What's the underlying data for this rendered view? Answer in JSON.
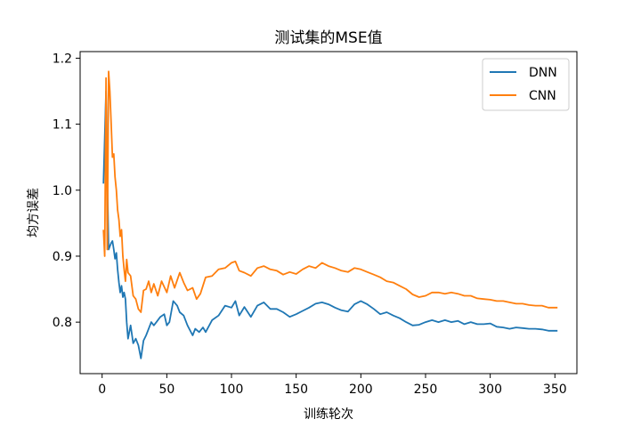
{
  "chart_data": {
    "type": "line",
    "title": "测试集的MSE值",
    "xlabel": "训练轮次",
    "ylabel": "均方误差",
    "xlim": [
      -17,
      367
    ],
    "ylim": [
      0.722,
      1.21
    ],
    "xticks": [
      0,
      50,
      100,
      150,
      200,
      250,
      300,
      350
    ],
    "yticks": [
      0.8,
      0.9,
      1.0,
      1.1,
      1.2
    ],
    "xtick_labels": [
      "0",
      "50",
      "100",
      "150",
      "200",
      "250",
      "300",
      "350"
    ],
    "ytick_labels": [
      "0.8",
      "0.9",
      "1.0",
      "1.1",
      "1.2"
    ],
    "grid": false,
    "legend_position": "top-right",
    "series": [
      {
        "name": "DNN",
        "color": "#1f77b4",
        "x": [
          1,
          3,
          4,
          5,
          6,
          7,
          8,
          9,
          10,
          11,
          12,
          13,
          14,
          15,
          16,
          17,
          18,
          19,
          20,
          22,
          24,
          26,
          28,
          30,
          32,
          34,
          36,
          38,
          40,
          42,
          45,
          48,
          50,
          52,
          55,
          58,
          60,
          63,
          66,
          70,
          72,
          75,
          78,
          80,
          85,
          90,
          95,
          100,
          103,
          106,
          110,
          115,
          120,
          125,
          130,
          135,
          140,
          145,
          150,
          155,
          160,
          165,
          170,
          175,
          180,
          185,
          190,
          195,
          200,
          205,
          210,
          215,
          220,
          225,
          230,
          235,
          240,
          245,
          250,
          255,
          260,
          265,
          270,
          275,
          280,
          285,
          290,
          295,
          300,
          305,
          310,
          315,
          320,
          325,
          330,
          335,
          340,
          345,
          352
        ],
        "y": [
          1.01,
          1.15,
          1.02,
          0.91,
          0.915,
          0.92,
          0.923,
          0.91,
          0.896,
          0.905,
          0.88,
          0.86,
          0.845,
          0.855,
          0.838,
          0.845,
          0.835,
          0.8,
          0.775,
          0.795,
          0.768,
          0.775,
          0.765,
          0.745,
          0.772,
          0.78,
          0.79,
          0.8,
          0.795,
          0.8,
          0.808,
          0.812,
          0.795,
          0.8,
          0.832,
          0.825,
          0.815,
          0.81,
          0.795,
          0.78,
          0.79,
          0.785,
          0.792,
          0.785,
          0.803,
          0.81,
          0.825,
          0.822,
          0.832,
          0.81,
          0.823,
          0.808,
          0.825,
          0.83,
          0.82,
          0.82,
          0.815,
          0.808,
          0.812,
          0.817,
          0.822,
          0.828,
          0.83,
          0.827,
          0.822,
          0.818,
          0.816,
          0.827,
          0.832,
          0.827,
          0.82,
          0.812,
          0.815,
          0.81,
          0.806,
          0.8,
          0.795,
          0.796,
          0.8,
          0.803,
          0.8,
          0.803,
          0.8,
          0.802,
          0.797,
          0.8,
          0.797,
          0.797,
          0.798,
          0.793,
          0.792,
          0.79,
          0.792,
          0.791,
          0.79,
          0.79,
          0.789,
          0.787,
          0.787
        ]
      },
      {
        "name": "CNN",
        "color": "#ff7f0e",
        "x": [
          1,
          2,
          3,
          4,
          5,
          6,
          7,
          8,
          9,
          10,
          11,
          12,
          13,
          14,
          15,
          16,
          17,
          18,
          19,
          20,
          22,
          24,
          26,
          28,
          30,
          32,
          34,
          36,
          38,
          40,
          43,
          46,
          50,
          53,
          56,
          60,
          63,
          66,
          70,
          73,
          76,
          80,
          85,
          90,
          95,
          100,
          103,
          106,
          110,
          115,
          120,
          125,
          130,
          135,
          140,
          145,
          150,
          155,
          160,
          165,
          170,
          175,
          180,
          185,
          190,
          195,
          200,
          205,
          210,
          215,
          220,
          225,
          230,
          235,
          240,
          245,
          250,
          255,
          260,
          265,
          270,
          275,
          280,
          285,
          290,
          295,
          300,
          305,
          310,
          315,
          320,
          325,
          330,
          335,
          340,
          345,
          352
        ],
        "y": [
          0.94,
          0.9,
          1.17,
          0.91,
          1.18,
          1.15,
          1.1,
          1.05,
          1.055,
          1.02,
          1.0,
          0.97,
          0.955,
          0.93,
          0.94,
          0.9,
          0.88,
          0.862,
          0.895,
          0.875,
          0.87,
          0.84,
          0.835,
          0.82,
          0.815,
          0.848,
          0.85,
          0.862,
          0.845,
          0.858,
          0.84,
          0.862,
          0.845,
          0.87,
          0.852,
          0.875,
          0.86,
          0.848,
          0.852,
          0.835,
          0.843,
          0.868,
          0.87,
          0.88,
          0.882,
          0.89,
          0.892,
          0.878,
          0.875,
          0.87,
          0.882,
          0.885,
          0.88,
          0.878,
          0.872,
          0.876,
          0.873,
          0.88,
          0.885,
          0.882,
          0.89,
          0.885,
          0.882,
          0.878,
          0.876,
          0.882,
          0.88,
          0.876,
          0.872,
          0.868,
          0.862,
          0.86,
          0.855,
          0.85,
          0.842,
          0.838,
          0.84,
          0.845,
          0.845,
          0.843,
          0.845,
          0.843,
          0.84,
          0.84,
          0.836,
          0.835,
          0.834,
          0.832,
          0.832,
          0.83,
          0.828,
          0.828,
          0.826,
          0.825,
          0.825,
          0.822,
          0.822
        ]
      }
    ]
  }
}
